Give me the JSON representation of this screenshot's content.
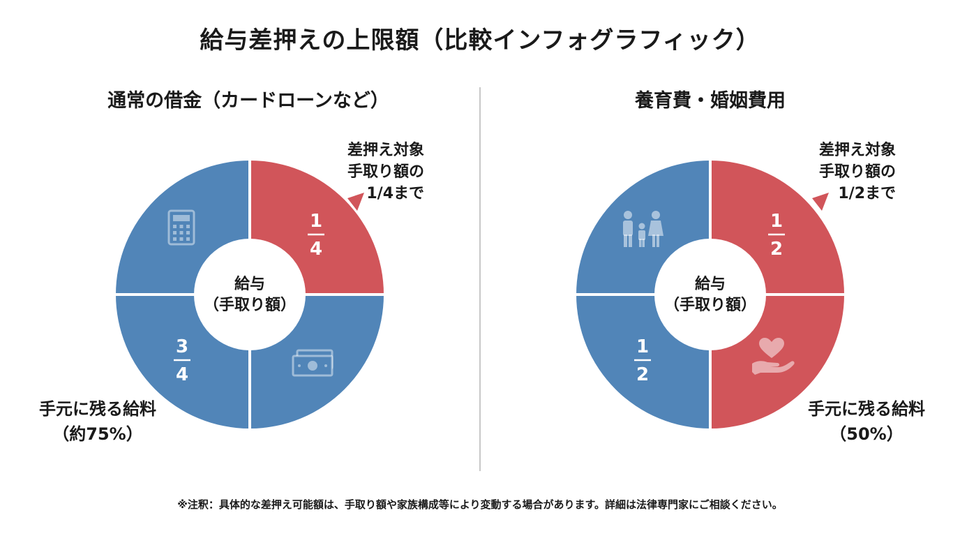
{
  "title": "給与差押えの上限額（比較インフォグラフィック）",
  "left": {
    "panel_title": "通常の借金（カードローンなど）",
    "center_label": [
      "給与",
      "（手取り額）"
    ],
    "callout": [
      "差押え対象",
      "手取り額の",
      "1/4まで"
    ],
    "remain": [
      "手元に残る給料",
      "（約75%）"
    ],
    "segment_labels": {
      "seized": [
        "1",
        "4"
      ],
      "remaining": [
        "3",
        "4"
      ]
    },
    "icons": [
      "calculator-icon",
      "banknote-icon"
    ]
  },
  "right": {
    "panel_title": "養育費・婚姻費用",
    "center_label": [
      "給与",
      "（手取り額）"
    ],
    "callout": [
      "差押え対象",
      "手取り額の",
      "1/2まで"
    ],
    "remain": [
      "手元に残る給料",
      "（50%）"
    ],
    "segment_labels": {
      "seized": [
        "1",
        "2"
      ],
      "remaining": [
        "1",
        "2"
      ]
    },
    "icons": [
      "family-icon",
      "heart-hand-icon"
    ]
  },
  "note": "※注釈：具体的な差押え可能額は、手取り額や家族構成等により変動する場合があります。詳細は法律専門家にご相談ください。",
  "colors": {
    "red": "#d1555a",
    "blue": "#5185b8",
    "divider": "#c8c8c8"
  },
  "chart_data": [
    {
      "type": "pie",
      "title": "通常の借金（カードローンなど）",
      "center_label": "給与（手取り額）",
      "categories": [
        "差押え対象",
        "手元に残る給料"
      ],
      "values": [
        0.25,
        0.75
      ],
      "value_labels": [
        "1/4",
        "3/4"
      ]
    },
    {
      "type": "pie",
      "title": "養育費・婚姻費用",
      "center_label": "給与（手取り額）",
      "categories": [
        "差押え対象",
        "手元に残る給料"
      ],
      "values": [
        0.5,
        0.5
      ],
      "value_labels": [
        "1/2",
        "1/2"
      ]
    }
  ]
}
